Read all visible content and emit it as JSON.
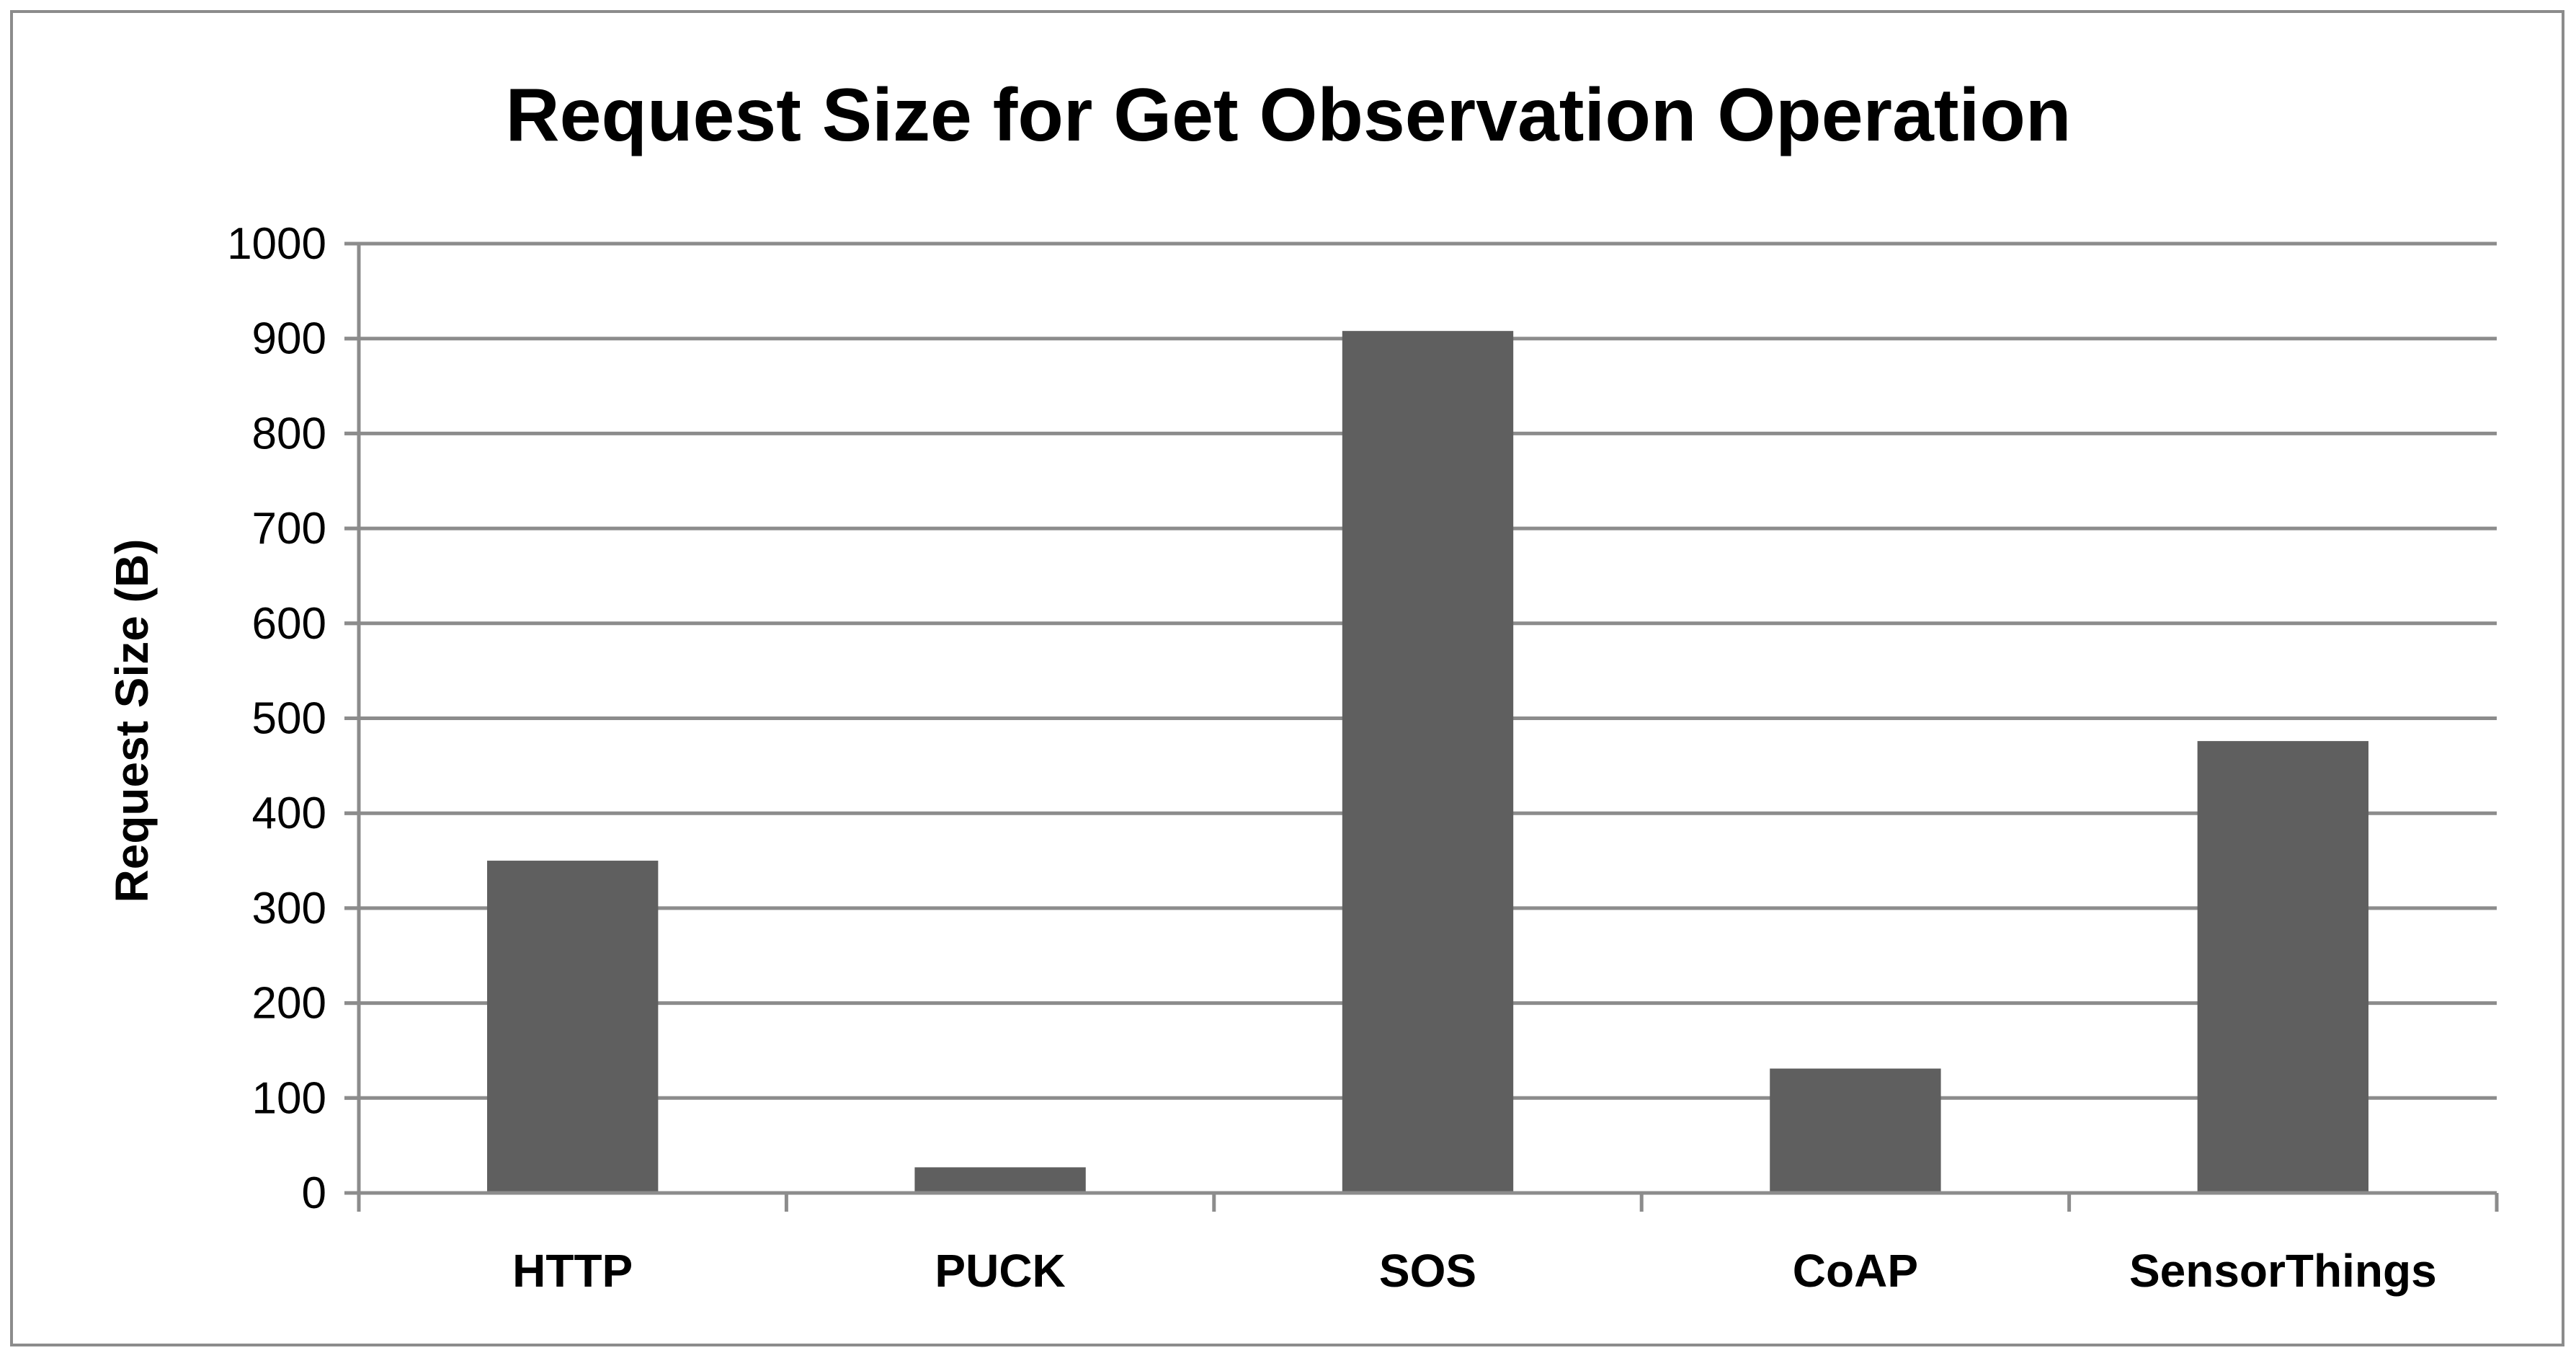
{
  "chart_data": {
    "type": "bar",
    "title": "Request Size for Get Observation Operation",
    "xlabel": "",
    "ylabel": "Request Size (B)",
    "categories": [
      "HTTP",
      "PUCK",
      "SOS",
      "CoAP",
      "SensorThings"
    ],
    "values": [
      350,
      27,
      908,
      131,
      476
    ],
    "ylim": [
      0,
      1000
    ],
    "yticks": [
      0,
      100,
      200,
      300,
      400,
      500,
      600,
      700,
      800,
      900,
      1000
    ],
    "grid": true,
    "legend": "none",
    "bar_color": "#5f5f5f",
    "grid_color": "#8c8c8c",
    "axis_color": "#8c8c8c"
  }
}
